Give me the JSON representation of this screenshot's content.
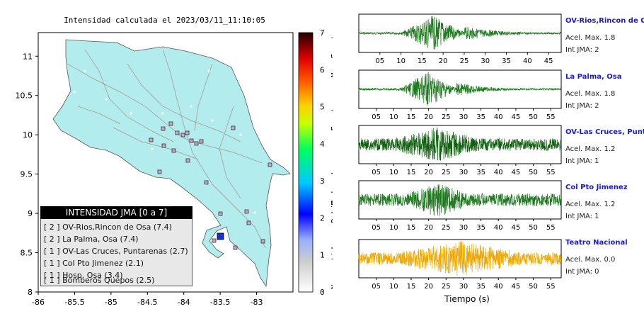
{
  "map": {
    "title": "Intensidad calculada el 2023/03/11_11:10:05",
    "x_ticks": [
      "-86",
      "-85.5",
      "-85",
      "-84.5",
      "-84",
      "-83.5",
      "-83"
    ],
    "y_ticks": [
      "11",
      "10.5",
      "10",
      "9.5",
      "9",
      "8.5",
      "8"
    ],
    "colorbar_ticks": [
      "7",
      "6",
      "5",
      "4",
      "3",
      "2",
      "1",
      "0"
    ],
    "colorbar_labels": [
      "Muy Fuerte",
      "Fuerte",
      "Moderado",
      "Debil",
      "No sentido"
    ],
    "legend_title": "INTENSIDAD JMA [0 a 7]",
    "legend_rows": [
      "[ 2 ]  OV-Rios,Rincon de Osa (7.4)",
      "[ 2 ]  La Palma, Osa (7.4)",
      "[ 1 ]  OV-Las Cruces, Puntarenas (2.7)",
      "[ 1 ]  Col Pto Jimenez (2.1)",
      "[ 1 ]  Hosp. Osa (3.4)",
      "[ 1 ]  Bomberos Quepos (2.5)"
    ],
    "colors": {
      "land": "#b3ecec",
      "sea": "#ffffff",
      "roads": "#aaaaaa",
      "high_station": "#1432d2"
    }
  },
  "stations": [
    {
      "name": "OV-Rios,Rincon de Osa",
      "acel": "Acel. Max. 1.8",
      "jma": "Int JMA: 2",
      "ticks": [
        "05",
        "10",
        "15",
        "20",
        "25",
        "30",
        "35",
        "40",
        "45"
      ],
      "color": "#1e7a1e"
    },
    {
      "name": "La Palma, Osa",
      "acel": "Acel. Max. 1.8",
      "jma": "Int JMA: 2",
      "ticks": [
        "05",
        "10",
        "15",
        "20",
        "25",
        "30",
        "35",
        "40",
        "45",
        "50",
        "55"
      ],
      "color": "#1e7a1e"
    },
    {
      "name": "OV-Las Cruces, Puntarenas",
      "acel": "Acel. Max. 1.2",
      "jma": "Int JMA: 1",
      "ticks": [
        "05",
        "10",
        "15",
        "20",
        "25",
        "30",
        "35",
        "40",
        "45",
        "50",
        "55"
      ],
      "color": "#106010"
    },
    {
      "name": "Col Pto Jimenez",
      "acel": "Acel. Max. 1.2",
      "jma": "Int JMA: 1",
      "ticks": [
        "05",
        "10",
        "15",
        "20",
        "25",
        "30",
        "35",
        "40",
        "45",
        "50",
        "55"
      ],
      "color": "#1e7a1e"
    },
    {
      "name": "Teatro Nacional",
      "acel": "Acel. Max. 0.0",
      "jma": "Int JMA: 0",
      "ticks": [
        "05",
        "10",
        "15",
        "20",
        "25",
        "30",
        "35",
        "40",
        "45",
        "50",
        "55"
      ],
      "color": "#f0a800"
    }
  ],
  "time_axis_label": "Tiempo (s)",
  "chart_data": {
    "type": "scatter",
    "title": "Intensidad calculada el 2023/03/11_11:10:05",
    "xlabel": "",
    "ylabel": "",
    "xlim": [
      -86,
      -82.5
    ],
    "ylim": [
      8,
      11.3
    ],
    "series": [
      {
        "name": "OV-Rios,Rincon de Osa",
        "values": [
          [
            -83.5,
            8.65
          ]
        ]
      },
      {
        "name": "La Palma, Osa",
        "values": [
          [
            -83.47,
            8.62
          ]
        ]
      },
      {
        "name": "OV-Las Cruces, Puntarenas",
        "values": [
          [
            -82.97,
            8.8
          ]
        ]
      },
      {
        "name": "Col Pto Jimenez",
        "values": [
          [
            -83.3,
            8.53
          ]
        ]
      },
      {
        "name": "Hosp. Osa",
        "values": [
          [
            -83.45,
            8.96
          ]
        ]
      },
      {
        "name": "Bomberos Quepos",
        "values": [
          [
            -84.15,
            9.43
          ]
        ]
      }
    ],
    "intensities": [
      2,
      2,
      1,
      1,
      1,
      1
    ]
  }
}
